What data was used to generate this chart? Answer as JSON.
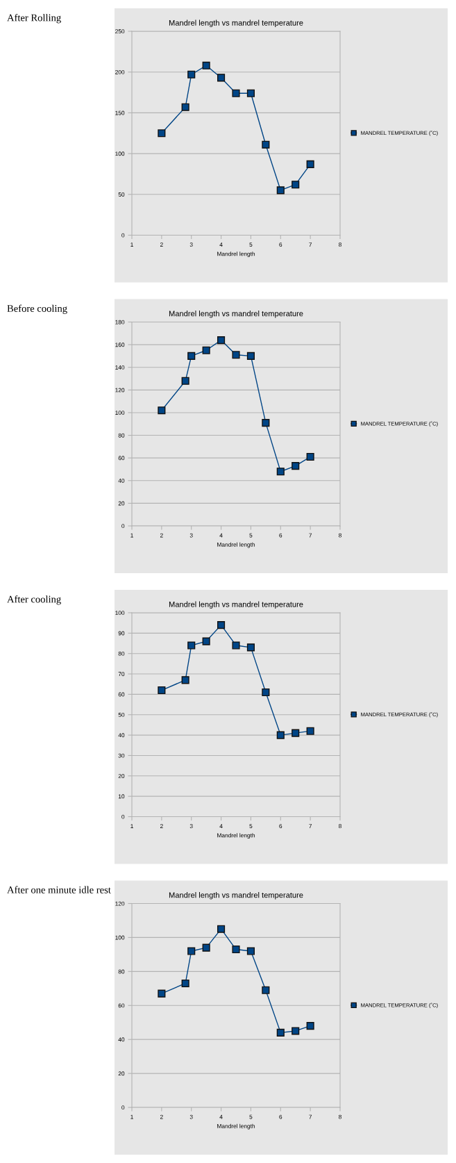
{
  "chart_data": [
    {
      "type": "line",
      "title": "Mandrel length vs mandrel temperature",
      "xlabel": "Mandrel length",
      "annotations": [
        "After Rolling"
      ],
      "x": [
        2,
        2.8,
        3,
        3.5,
        4,
        4.5,
        5,
        5.5,
        6,
        6.5,
        7
      ],
      "xlim": [
        1,
        8
      ],
      "xticks": [
        1,
        2,
        3,
        4,
        5,
        6,
        7,
        8
      ],
      "ylim": [
        0,
        250
      ],
      "yticks": [
        0,
        50,
        100,
        150,
        200,
        250
      ],
      "grid": "y",
      "legend": "right",
      "marker": "square",
      "line_style": "solid",
      "series": [
        {
          "name": "MANDREL TEMPERATURE (˚C)",
          "color": "#004586",
          "values": [
            125,
            157,
            197,
            208,
            193,
            174,
            174,
            111,
            55,
            62,
            87
          ]
        }
      ]
    },
    {
      "type": "line",
      "title": "Mandrel length vs mandrel temperature",
      "xlabel": "Mandrel length",
      "annotations": [
        "Before cooling"
      ],
      "x": [
        2,
        2.8,
        3,
        3.5,
        4,
        4.5,
        5,
        5.5,
        6,
        6.5,
        7
      ],
      "xlim": [
        1,
        8
      ],
      "xticks": [
        1,
        2,
        3,
        4,
        5,
        6,
        7,
        8
      ],
      "ylim": [
        0,
        180
      ],
      "yticks": [
        0,
        20,
        40,
        60,
        80,
        100,
        120,
        140,
        160,
        180
      ],
      "grid": "y",
      "legend": "right",
      "marker": "square",
      "line_style": "solid",
      "series": [
        {
          "name": "MANDREL TEMPERATURE (˚C)",
          "color": "#004586",
          "values": [
            102,
            128,
            150,
            155,
            164,
            151,
            150,
            91,
            48,
            53,
            61
          ]
        }
      ]
    },
    {
      "type": "line",
      "title": "Mandrel length vs mandrel temperature",
      "xlabel": "Mandrel length",
      "annotations": [
        "After cooling"
      ],
      "x": [
        2,
        2.8,
        3,
        3.5,
        4,
        4.5,
        5,
        5.5,
        6,
        6.5,
        7
      ],
      "xlim": [
        1,
        8
      ],
      "xticks": [
        1,
        2,
        3,
        4,
        5,
        6,
        7,
        8
      ],
      "ylim": [
        0,
        100
      ],
      "yticks": [
        0,
        10,
        20,
        30,
        40,
        50,
        60,
        70,
        80,
        90,
        100
      ],
      "grid": "y",
      "legend": "right",
      "marker": "square",
      "line_style": "solid",
      "series": [
        {
          "name": "MANDREL TEMPERATURE (˚C)",
          "color": "#004586",
          "values": [
            62,
            67,
            84,
            86,
            94,
            84,
            83,
            61,
            40,
            41,
            42
          ]
        }
      ]
    },
    {
      "type": "line",
      "title": "Mandrel length vs mandrel temperature",
      "xlabel": "Mandrel length",
      "annotations": [
        "After one minute idle rest"
      ],
      "x": [
        2,
        2.8,
        3,
        3.5,
        4,
        4.5,
        5,
        5.5,
        6,
        6.5,
        7
      ],
      "xlim": [
        1,
        8
      ],
      "xticks": [
        1,
        2,
        3,
        4,
        5,
        6,
        7,
        8
      ],
      "ylim": [
        0,
        120
      ],
      "yticks": [
        0,
        20,
        40,
        60,
        80,
        100,
        120
      ],
      "grid": "y",
      "legend": "right",
      "marker": "square",
      "line_style": "solid",
      "series": [
        {
          "name": "MANDREL TEMPERATURE (˚C)",
          "color": "#004586",
          "values": [
            67,
            73,
            92,
            94,
            105,
            93,
            92,
            69,
            44,
            45,
            48
          ]
        }
      ]
    }
  ]
}
